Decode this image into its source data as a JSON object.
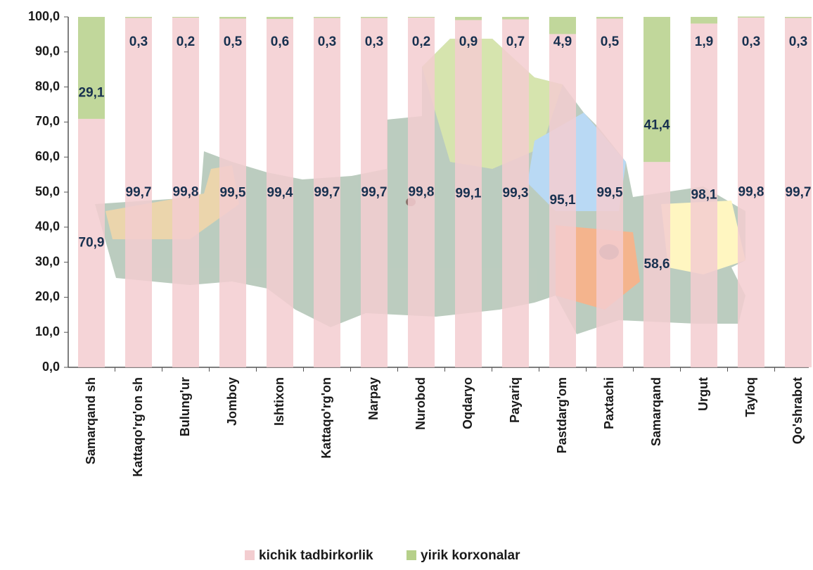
{
  "chart_data": {
    "type": "stacked_bar",
    "categories": [
      "Samarqand sh",
      "Kattaqo'rg'on sh",
      "Bulung'ur",
      "Jomboy",
      "Ishtixon",
      "Kattaqo'rg'on",
      "Narpay",
      "Nurobod",
      "Oqdaryo",
      "Payariq",
      "Pastdarg'om",
      "Paxtachi",
      "Samarqand",
      "Urgut",
      "Tayloq",
      "Qo'shrabot"
    ],
    "series": [
      {
        "name": "kichik tadbirkorlik",
        "color": "#f3cdd0",
        "values": [
          70.9,
          99.7,
          99.8,
          99.5,
          99.4,
          99.7,
          99.7,
          99.8,
          99.1,
          99.3,
          95.1,
          99.5,
          58.6,
          98.1,
          99.8,
          99.7
        ],
        "value_labels": [
          "70,9",
          "99,7",
          "99,8",
          "99,5",
          "99,4",
          "99,7",
          "99,7",
          "99,8",
          "99,1",
          "99,3",
          "95,1",
          "99,5",
          "58,6",
          "98,1",
          "99,8",
          "99,7"
        ]
      },
      {
        "name": "yirik korxonalar",
        "color": "#b6d08a",
        "values": [
          29.1,
          0.3,
          0.2,
          0.5,
          0.6,
          0.3,
          0.3,
          0.2,
          0.9,
          0.7,
          4.9,
          0.5,
          41.4,
          1.9,
          0.3,
          0.3
        ],
        "value_labels": [
          "29,1",
          "0,3",
          "0,2",
          "0,5",
          "0,6",
          "0,3",
          "0,3",
          "0,2",
          "0,9",
          "0,7",
          "4,9",
          "0,5",
          "41,4",
          "1,9",
          "0,3",
          "0,3"
        ]
      }
    ],
    "ylim": [
      0,
      100
    ],
    "yticks": [
      {
        "value": 0,
        "label": "0,0"
      },
      {
        "value": 10,
        "label": "10,0"
      },
      {
        "value": 20,
        "label": "20,0"
      },
      {
        "value": 30,
        "label": "30,0"
      },
      {
        "value": 40,
        "label": "40,0"
      },
      {
        "value": 50,
        "label": "50,0"
      },
      {
        "value": 60,
        "label": "60,0"
      },
      {
        "value": 70,
        "label": "70,0"
      },
      {
        "value": 80,
        "label": "80,0"
      },
      {
        "value": 90,
        "label": "90,0"
      },
      {
        "value": 100,
        "label": "100,0"
      }
    ]
  }
}
